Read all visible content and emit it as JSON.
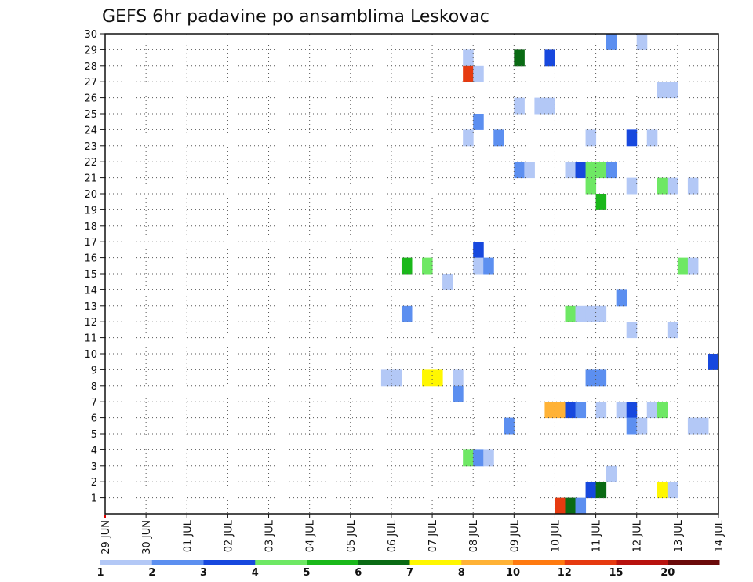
{
  "chart_data": {
    "type": "heatmap",
    "title": "GEFS 6hr padavine po ansamblima Leskovac",
    "x_tick_labels": [
      "29 JUN",
      "30 JUN",
      "01 JUL",
      "02 JUL",
      "03 JUL",
      "04 JUL",
      "05 JUL",
      "06 JUL",
      "07 JUL",
      "08 JUL",
      "09 JUL",
      "10 JUL",
      "11 JUL",
      "12 JUL",
      "13 JUL",
      "14 JUL"
    ],
    "y_tick_labels": [
      "1",
      "2",
      "3",
      "4",
      "5",
      "6",
      "7",
      "8",
      "9",
      "10",
      "11",
      "12",
      "13",
      "14",
      "15",
      "16",
      "17",
      "18",
      "19",
      "20",
      "21",
      "22",
      "23",
      "24",
      "25",
      "26",
      "27",
      "28",
      "29",
      "30"
    ],
    "x_unit": "day offset from 29 JUN (6-hour steps = 0.25)",
    "y_range": [
      0,
      30
    ],
    "x_range": [
      0,
      15
    ],
    "grid": true,
    "colorbar": {
      "labels": [
        "1",
        "2",
        "3",
        "4",
        "5",
        "6",
        "7",
        "8",
        "10",
        "12",
        "15",
        "20"
      ],
      "colors": [
        "#b3c8f6",
        "#5c8ff0",
        "#1748de",
        "#6ee864",
        "#1ab81a",
        "#0a6b14",
        "#fff700",
        "#ffb236",
        "#ff7a10",
        "#e63a10",
        "#b8120e",
        "#6b0a0a"
      ]
    },
    "cells": [
      {
        "x": 12.25,
        "y": 30,
        "v": 2
      },
      {
        "x": 13.0,
        "y": 30,
        "v": 1
      },
      {
        "x": 8.75,
        "y": 29,
        "v": 1
      },
      {
        "x": 10.0,
        "y": 29,
        "v": 6
      },
      {
        "x": 10.75,
        "y": 29,
        "v": 3
      },
      {
        "x": 8.75,
        "y": 28,
        "v": 10
      },
      {
        "x": 9.0,
        "y": 28,
        "v": 1
      },
      {
        "x": 13.5,
        "y": 27,
        "v": 1
      },
      {
        "x": 13.75,
        "y": 27,
        "v": 1
      },
      {
        "x": 10.0,
        "y": 26,
        "v": 1
      },
      {
        "x": 10.5,
        "y": 26,
        "v": 1
      },
      {
        "x": 10.75,
        "y": 26,
        "v": 1
      },
      {
        "x": 9.0,
        "y": 25,
        "v": 2
      },
      {
        "x": 8.75,
        "y": 24,
        "v": 1
      },
      {
        "x": 9.5,
        "y": 24,
        "v": 2
      },
      {
        "x": 11.75,
        "y": 24,
        "v": 1
      },
      {
        "x": 12.75,
        "y": 24,
        "v": 3
      },
      {
        "x": 13.25,
        "y": 24,
        "v": 1
      },
      {
        "x": 10.0,
        "y": 22,
        "v": 2
      },
      {
        "x": 10.25,
        "y": 22,
        "v": 1
      },
      {
        "x": 11.25,
        "y": 22,
        "v": 1
      },
      {
        "x": 11.5,
        "y": 22,
        "v": 3
      },
      {
        "x": 11.75,
        "y": 22,
        "v": 4
      },
      {
        "x": 12.0,
        "y": 22,
        "v": 4
      },
      {
        "x": 12.25,
        "y": 22,
        "v": 2
      },
      {
        "x": 11.75,
        "y": 21,
        "v": 4
      },
      {
        "x": 12.75,
        "y": 21,
        "v": 1
      },
      {
        "x": 13.5,
        "y": 21,
        "v": 4
      },
      {
        "x": 13.75,
        "y": 21,
        "v": 1
      },
      {
        "x": 14.25,
        "y": 21,
        "v": 1
      },
      {
        "x": 12.0,
        "y": 20,
        "v": 5
      },
      {
        "x": 9.0,
        "y": 17,
        "v": 3
      },
      {
        "x": 7.25,
        "y": 16,
        "v": 5
      },
      {
        "x": 7.75,
        "y": 16,
        "v": 4
      },
      {
        "x": 9.0,
        "y": 16,
        "v": 1
      },
      {
        "x": 9.25,
        "y": 16,
        "v": 2
      },
      {
        "x": 14.0,
        "y": 16,
        "v": 4
      },
      {
        "x": 14.25,
        "y": 16,
        "v": 1
      },
      {
        "x": 8.25,
        "y": 15,
        "v": 1
      },
      {
        "x": 12.5,
        "y": 14,
        "v": 2
      },
      {
        "x": 7.25,
        "y": 13,
        "v": 2
      },
      {
        "x": 11.25,
        "y": 13,
        "v": 4
      },
      {
        "x": 11.5,
        "y": 13,
        "v": 1
      },
      {
        "x": 11.75,
        "y": 13,
        "v": 1
      },
      {
        "x": 12.0,
        "y": 13,
        "v": 1
      },
      {
        "x": 12.75,
        "y": 12,
        "v": 1
      },
      {
        "x": 13.75,
        "y": 12,
        "v": 1
      },
      {
        "x": 14.75,
        "y": 10,
        "v": 3
      },
      {
        "x": 6.75,
        "y": 9,
        "v": 1
      },
      {
        "x": 7.0,
        "y": 9,
        "v": 1
      },
      {
        "x": 7.75,
        "y": 9,
        "v": 7
      },
      {
        "x": 8.0,
        "y": 9,
        "v": 7
      },
      {
        "x": 8.5,
        "y": 9,
        "v": 1
      },
      {
        "x": 11.75,
        "y": 9,
        "v": 2
      },
      {
        "x": 12.0,
        "y": 9,
        "v": 2
      },
      {
        "x": 8.5,
        "y": 8,
        "v": 2
      },
      {
        "x": 10.75,
        "y": 7,
        "v": 8
      },
      {
        "x": 11.0,
        "y": 7,
        "v": 8
      },
      {
        "x": 11.25,
        "y": 7,
        "v": 3
      },
      {
        "x": 11.5,
        "y": 7,
        "v": 2
      },
      {
        "x": 12.0,
        "y": 7,
        "v": 1
      },
      {
        "x": 12.5,
        "y": 7,
        "v": 1
      },
      {
        "x": 12.75,
        "y": 7,
        "v": 3
      },
      {
        "x": 13.25,
        "y": 7,
        "v": 1
      },
      {
        "x": 13.5,
        "y": 7,
        "v": 4
      },
      {
        "x": 9.75,
        "y": 6,
        "v": 2
      },
      {
        "x": 12.75,
        "y": 6,
        "v": 2
      },
      {
        "x": 13.0,
        "y": 6,
        "v": 1
      },
      {
        "x": 14.25,
        "y": 6,
        "v": 1
      },
      {
        "x": 14.5,
        "y": 6,
        "v": 1
      },
      {
        "x": 8.75,
        "y": 4,
        "v": 4
      },
      {
        "x": 9.0,
        "y": 4,
        "v": 2
      },
      {
        "x": 9.25,
        "y": 4,
        "v": 1
      },
      {
        "x": 12.25,
        "y": 3,
        "v": 1
      },
      {
        "x": 11.75,
        "y": 2,
        "v": 3
      },
      {
        "x": 12.0,
        "y": 2,
        "v": 6
      },
      {
        "x": 13.5,
        "y": 2,
        "v": 7
      },
      {
        "x": 13.75,
        "y": 2,
        "v": 1
      },
      {
        "x": 11.0,
        "y": 1,
        "v": 10
      },
      {
        "x": 11.25,
        "y": 1,
        "v": 6
      },
      {
        "x": 11.5,
        "y": 1,
        "v": 2
      }
    ]
  }
}
